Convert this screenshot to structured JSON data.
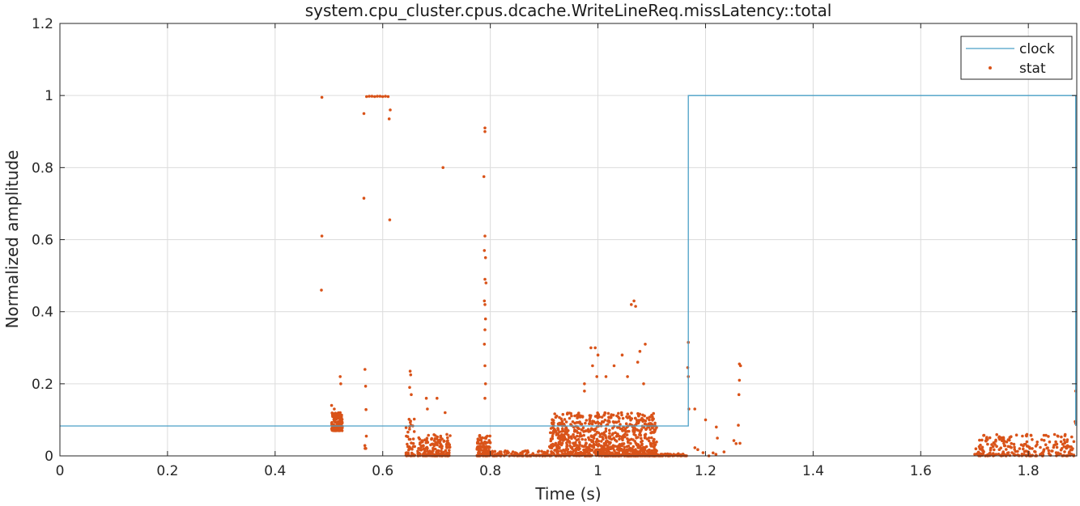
{
  "chart_data": {
    "type": "scatter",
    "title": "system.cpu_cluster.cpus.dcache.WriteLineReq.missLatency::total",
    "xlabel": "Time (s)",
    "ylabel": "Normalized amplitude",
    "xlim": [
      0,
      1.89
    ],
    "ylim": [
      0,
      1.2
    ],
    "x_ticks": [
      0,
      0.2,
      0.4,
      0.6,
      0.8,
      1,
      1.2,
      1.4,
      1.6,
      1.8
    ],
    "x_tick_labels": [
      "0",
      "0.2",
      "0.4",
      "0.6",
      "0.8",
      "1",
      "1.2",
      "1.4",
      "1.6",
      "1.8"
    ],
    "y_ticks": [
      0,
      0.2,
      0.4,
      0.6,
      0.8,
      1,
      1.2
    ],
    "y_tick_labels": [
      "0",
      "0.2",
      "0.4",
      "0.6",
      "0.8",
      "1",
      "1.2"
    ],
    "grid": true,
    "legend_position": "top-right",
    "series": [
      {
        "name": "clock",
        "kind": "step-line",
        "color": "#4a9fc6",
        "points": [
          [
            0,
            0.083
          ],
          [
            1.168,
            0.083
          ],
          [
            1.168,
            1.0
          ],
          [
            1.888,
            1.0
          ],
          [
            1.888,
            0.083
          ]
        ]
      },
      {
        "name": "stat",
        "kind": "dots",
        "color": "#d95319",
        "points": [
          [
            0.487,
            0.995
          ],
          [
            0.487,
            0.61
          ],
          [
            0.486,
            0.46
          ],
          [
            0.565,
            0.95
          ],
          [
            0.565,
            0.715
          ],
          [
            0.567,
            0.24
          ],
          [
            0.57,
            0.997
          ],
          [
            0.575,
            0.998
          ],
          [
            0.58,
            0.998
          ],
          [
            0.585,
            0.997
          ],
          [
            0.59,
            0.998
          ],
          [
            0.595,
            0.998
          ],
          [
            0.6,
            0.997
          ],
          [
            0.605,
            0.998
          ],
          [
            0.61,
            0.997
          ],
          [
            0.614,
            0.96
          ],
          [
            0.612,
            0.935
          ],
          [
            0.613,
            0.655
          ],
          [
            0.712,
            0.8
          ],
          [
            0.79,
            0.91
          ],
          [
            0.79,
            0.9
          ],
          [
            0.788,
            0.775
          ],
          [
            0.79,
            0.61
          ],
          [
            0.789,
            0.57
          ],
          [
            0.791,
            0.55
          ],
          [
            0.79,
            0.49
          ],
          [
            0.792,
            0.48
          ],
          [
            0.789,
            0.43
          ],
          [
            0.79,
            0.42
          ],
          [
            0.791,
            0.38
          ],
          [
            0.79,
            0.35
          ],
          [
            0.789,
            0.31
          ],
          [
            0.79,
            0.25
          ],
          [
            0.791,
            0.2
          ],
          [
            0.79,
            0.16
          ],
          [
            0.521,
            0.22
          ],
          [
            0.522,
            0.2
          ],
          [
            0.52,
            0.11
          ],
          [
            0.51,
            0.13
          ],
          [
            0.505,
            0.14
          ],
          [
            0.651,
            0.235
          ],
          [
            0.652,
            0.225
          ],
          [
            0.65,
            0.19
          ],
          [
            0.653,
            0.17
          ],
          [
            0.681,
            0.16
          ],
          [
            0.683,
            0.13
          ],
          [
            0.701,
            0.16
          ],
          [
            0.716,
            0.12
          ],
          [
            0.975,
            0.2
          ],
          [
            0.975,
            0.18
          ],
          [
            0.987,
            0.3
          ],
          [
            0.995,
            0.3
          ],
          [
            0.99,
            0.25
          ],
          [
            1.0,
            0.28
          ],
          [
            0.998,
            0.22
          ],
          [
            1.015,
            0.22
          ],
          [
            1.03,
            0.25
          ],
          [
            1.045,
            0.28
          ],
          [
            1.055,
            0.22
          ],
          [
            1.062,
            0.42
          ],
          [
            1.067,
            0.43
          ],
          [
            1.07,
            0.415
          ],
          [
            1.074,
            0.26
          ],
          [
            1.088,
            0.31
          ],
          [
            1.078,
            0.29
          ],
          [
            1.085,
            0.2
          ],
          [
            1.168,
            0.315
          ],
          [
            1.167,
            0.245
          ],
          [
            1.168,
            0.22
          ],
          [
            1.169,
            0.13
          ],
          [
            1.18,
            0.13
          ],
          [
            1.2,
            0.1
          ],
          [
            1.22,
            0.08
          ],
          [
            1.263,
            0.255
          ],
          [
            1.265,
            0.25
          ],
          [
            1.263,
            0.21
          ],
          [
            1.262,
            0.17
          ],
          [
            1.261,
            0.085
          ],
          [
            1.264,
            0.035
          ],
          [
            1.888,
            0.18
          ],
          [
            1.887,
            0.095
          ],
          [
            1.888,
            0.09
          ]
        ],
        "clusters": [
          {
            "x": [
              0.505,
              0.525
            ],
            "y": [
              0.07,
              0.12
            ],
            "n": 170
          },
          {
            "x": [
              0.565,
              0.57
            ],
            "y": [
              0.02,
              0.2
            ],
            "n": 6
          },
          {
            "x": [
              0.643,
              0.66
            ],
            "y": [
              0.0,
              0.11
            ],
            "n": 45
          },
          {
            "x": [
              0.665,
              0.726
            ],
            "y": [
              0.0,
              0.06
            ],
            "n": 180
          },
          {
            "x": [
              0.775,
              0.8
            ],
            "y": [
              0.0,
              0.06
            ],
            "n": 110
          },
          {
            "x": [
              0.8,
              0.91
            ],
            "y": [
              0.0,
              0.015
            ],
            "n": 110
          },
          {
            "x": [
              0.91,
              1.11
            ],
            "y": [
              0.0,
              0.12
            ],
            "n": 900
          },
          {
            "x": [
              1.05,
              1.165
            ],
            "y": [
              0.0,
              0.006
            ],
            "n": 120
          },
          {
            "x": [
              1.18,
              1.26
            ],
            "y": [
              0.0,
              0.05
            ],
            "n": 10
          },
          {
            "x": [
              1.7,
              1.885
            ],
            "y": [
              0.0,
              0.06
            ],
            "n": 240
          }
        ]
      }
    ]
  }
}
